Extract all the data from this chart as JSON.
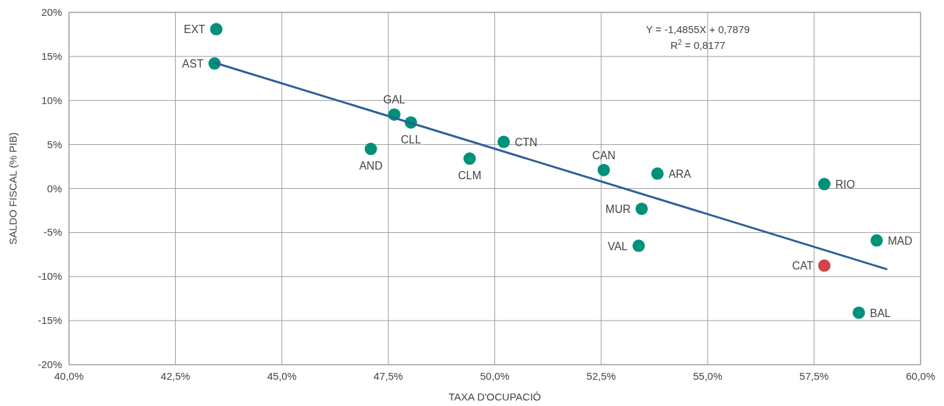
{
  "chart_data": {
    "type": "scatter",
    "xlabel": "TAXA D'OCUPACIÓ",
    "ylabel": "SALDO FISCAL (% PIB)",
    "xlim": [
      40,
      60
    ],
    "ylim": [
      -20,
      20
    ],
    "xticks": [
      {
        "value": 40,
        "label": "40,0%"
      },
      {
        "value": 42.5,
        "label": "42,5%"
      },
      {
        "value": 45,
        "label": "45,0%"
      },
      {
        "value": 47.5,
        "label": "47,5%"
      },
      {
        "value": 50,
        "label": "50,0%"
      },
      {
        "value": 52.5,
        "label": "52,5%"
      },
      {
        "value": 55,
        "label": "55,0%"
      },
      {
        "value": 57.5,
        "label": "57,5%"
      },
      {
        "value": 60,
        "label": "60,0%"
      }
    ],
    "yticks": [
      {
        "value": -20,
        "label": "-20%"
      },
      {
        "value": -15,
        "label": "-15%"
      },
      {
        "value": -10,
        "label": "-10%"
      },
      {
        "value": -5,
        "label": "-5%"
      },
      {
        "value": 0,
        "label": "0%"
      },
      {
        "value": 5,
        "label": "5%"
      },
      {
        "value": 10,
        "label": "10%"
      },
      {
        "value": 15,
        "label": "15%"
      },
      {
        "value": 20,
        "label": "20%"
      }
    ],
    "grid": true,
    "marker": "circle",
    "series": [
      {
        "x": [
          43.46,
          43.42,
          47.64,
          48.03,
          47.09,
          49.41,
          50.21,
          52.56,
          53.82,
          53.45,
          53.38,
          57.74,
          58.97,
          57.74,
          58.55
        ],
        "values": [
          18.1,
          14.2,
          8.4,
          7.5,
          4.5,
          3.4,
          5.3,
          2.1,
          1.7,
          -2.3,
          -6.5,
          0.5,
          -5.9,
          -8.75,
          -14.1
        ],
        "colors": [
          "#00917a",
          "#00917a",
          "#00917a",
          "#00917a",
          "#00917a",
          "#00917a",
          "#00917a",
          "#00917a",
          "#00917a",
          "#00917a",
          "#00917a",
          "#00917a",
          "#00917a",
          "#d2444b",
          "#00917a"
        ]
      },
      {
        "type": "line",
        "color": "#2e5f98",
        "line_style": "solid",
        "marker": "none",
        "x": [
          43.42,
          59.2
        ],
        "values": [
          14.29,
          -9.15
        ]
      }
    ],
    "annotations": [
      {
        "text": "EXT",
        "x": 43.46,
        "y": 18.1
      },
      {
        "text": "AST",
        "x": 43.42,
        "y": 14.2
      },
      {
        "text": "GAL",
        "x": 47.64,
        "y": 8.4
      },
      {
        "text": "CLL",
        "x": 48.03,
        "y": 7.5
      },
      {
        "text": "AND",
        "x": 47.09,
        "y": 4.5
      },
      {
        "text": "CLM",
        "x": 49.41,
        "y": 3.4
      },
      {
        "text": "CTN",
        "x": 50.21,
        "y": 5.3
      },
      {
        "text": "CAN",
        "x": 52.56,
        "y": 2.1
      },
      {
        "text": "ARA",
        "x": 53.82,
        "y": 1.7
      },
      {
        "text": "MUR",
        "x": 53.45,
        "y": -2.3
      },
      {
        "text": "VAL",
        "x": 53.38,
        "y": -6.5
      },
      {
        "text": "RIO",
        "x": 57.74,
        "y": 0.5
      },
      {
        "text": "MAD",
        "x": 58.97,
        "y": -5.9
      },
      {
        "text": "CAT",
        "x": 57.74,
        "y": -8.75
      },
      {
        "text": "BAL",
        "x": 58.55,
        "y": -14.1
      },
      "Y = -1,4855X + 0,7879",
      "R$^{2}$ = 0,8177"
    ]
  }
}
